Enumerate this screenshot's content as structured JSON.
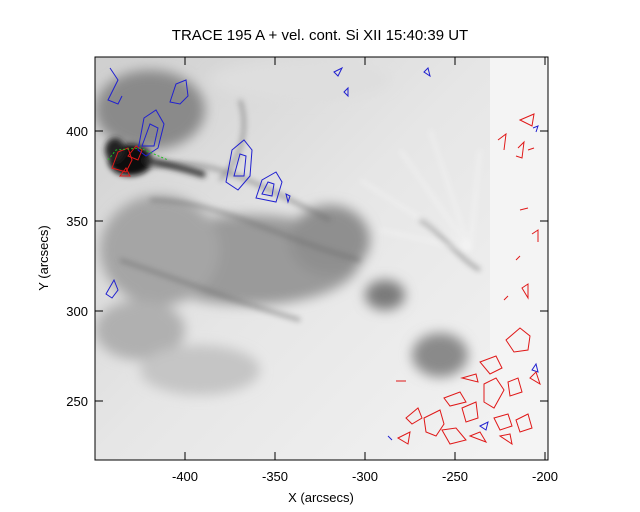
{
  "figure": {
    "title": "TRACE 195 A + vel. cont. Si XII 15:40:39 UT",
    "xlabel": "X (arcsecs)",
    "ylabel": "Y (arcsecs)"
  },
  "axes": {
    "x_ticks": [
      "-400",
      "-350",
      "-300",
      "-250",
      "-200"
    ],
    "y_ticks": [
      "400",
      "350",
      "300",
      "250"
    ],
    "x_range": [
      -448,
      -196
    ],
    "y_range": [
      216,
      443
    ]
  },
  "image": {
    "description_colors": {
      "background": "#f0f0f0",
      "dark": "#111111",
      "blue_contour": "#2020d0",
      "red_contour": "#e01818",
      "green_contour": "#20c020"
    }
  }
}
